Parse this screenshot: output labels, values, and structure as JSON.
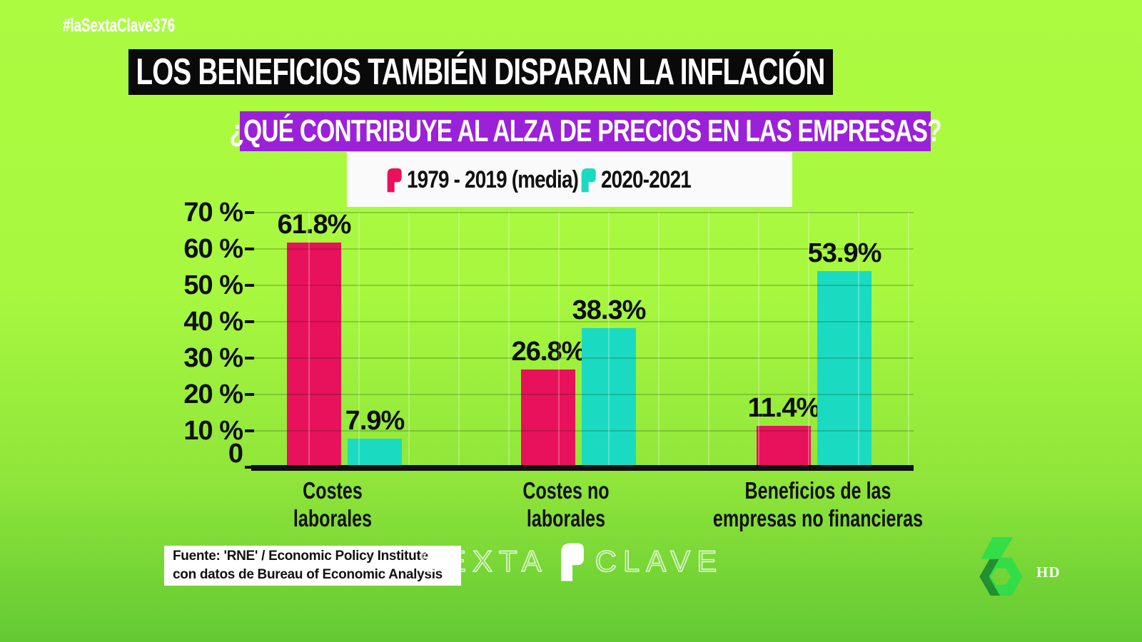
{
  "hashtag": "#laSextaClave376",
  "title": "LOS BENEFICIOS TAMBIÉN DISPARAN LA INFLACIÓN",
  "subtitle": "¿QUÉ CONTRIBUYE AL ALZA DE PRECIOS EN LAS EMPRESAS?",
  "legend": [
    {
      "label": "1979 - 2019 (media)",
      "color": "#E8115B"
    },
    {
      "label": "2020-2021",
      "color": "#1ADBC1"
    }
  ],
  "chart_data": {
    "type": "bar",
    "title": "¿QUÉ CONTRIBUYE AL ALZA DE PRECIOS EN LAS EMPRESAS?",
    "categories": [
      [
        "Costes",
        "laborales"
      ],
      [
        "Costes no",
        "laborales"
      ],
      [
        "Beneficios de las",
        "empresas no financieras"
      ]
    ],
    "series": [
      {
        "name": "1979 - 2019 (media)",
        "color": "#E8115B",
        "values": [
          61.8,
          26.8,
          11.4
        ],
        "value_labels": [
          "61.8%",
          "26.8%",
          "11.4%"
        ]
      },
      {
        "name": "2020-2021",
        "color": "#1ADBC1",
        "values": [
          7.9,
          38.3,
          53.9
        ],
        "value_labels": [
          "7.9%",
          "38.3%",
          "53.9%"
        ]
      }
    ],
    "ylabel": "%",
    "ylim": [
      0,
      70
    ],
    "yticks": [
      {
        "label": "70 %",
        "value": 70
      },
      {
        "label": "60 %",
        "value": 60
      },
      {
        "label": "50 %",
        "value": 50
      },
      {
        "label": "40 %",
        "value": 40
      },
      {
        "label": "30 %",
        "value": 30
      },
      {
        "label": "20 %",
        "value": 20
      },
      {
        "label": "10 %",
        "value": 10
      },
      {
        "label": "0",
        "value": 0
      }
    ],
    "grid": true,
    "legend_position": "top"
  },
  "source": {
    "line1": "Fuente: 'RNE' / Economic Policy Institute",
    "line2": "con datos de Bureau of Economic Analysis"
  },
  "watermark": {
    "left": "SEXTA",
    "right": "CLAVE"
  },
  "channel": {
    "hd_label": "HD"
  },
  "colors": {
    "background_top": "#ACFB41",
    "background_bottom": "#63C933",
    "banner_black": "#0A0A0A",
    "banner_purple": "#9B21D9",
    "series_pink": "#E8115B",
    "series_cyan": "#1ADBC1",
    "logo_green_light": "#2FDE49",
    "logo_green_dark": "#1C8A31",
    "text_black": "#111111",
    "white": "#FFFFFF"
  }
}
